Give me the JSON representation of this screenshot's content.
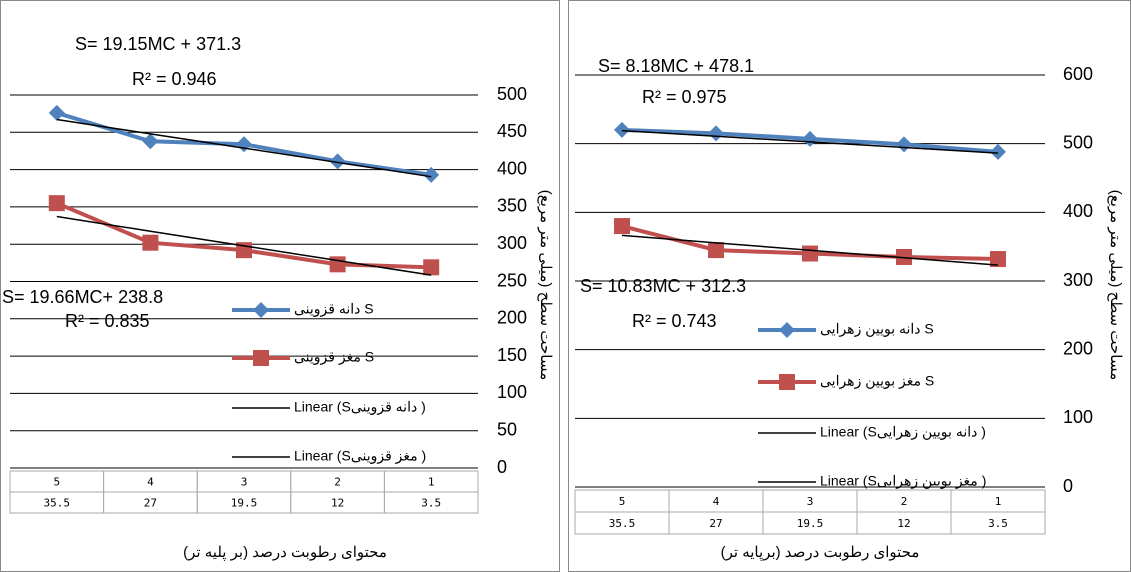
{
  "chart_data": [
    {
      "type": "line",
      "categories": [
        1,
        2,
        3,
        4,
        5
      ],
      "moisture": [
        3.5,
        12,
        19.5,
        27,
        35.5
      ],
      "x_label": "محتوای رطوبت درصد (بر پلیه تر)",
      "y_label": "مساحت سطح (میلی متر مربع)",
      "ylim": [
        0,
        500
      ],
      "yticks": [
        0,
        50,
        100,
        150,
        200,
        250,
        300,
        350,
        400,
        450,
        500
      ],
      "grid": true,
      "annotations": [
        "S= 19.15MC + 371.3",
        "R² = 0.946",
        "S= 19.66MC+ 238.8",
        "R² = 0.835"
      ],
      "series": [
        {
          "name": "دانه قزوینی S",
          "color": "#4f81bd",
          "marker": "diamond",
          "values": [
            393,
            411,
            434,
            438,
            476
          ]
        },
        {
          "name": "مغز قزوینی S",
          "color": "#c0504d",
          "marker": "square",
          "values": [
            269,
            273,
            292,
            302,
            355
          ]
        },
        {
          "name": "Linear (Sدانه قزوینی )",
          "color": "#000000",
          "marker": "none",
          "values": [
            390.5,
            409.6,
            428.8,
            447.9,
            467.1
          ]
        },
        {
          "name": "Linear (Sمغز قزوینی )",
          "color": "#000000",
          "marker": "none",
          "values": [
            258.5,
            278.1,
            297.8,
            317.4,
            337.1
          ]
        }
      ]
    },
    {
      "type": "line",
      "categories": [
        1,
        2,
        3,
        4,
        5
      ],
      "moisture": [
        3.5,
        12,
        19.5,
        27,
        35.5
      ],
      "x_label": "محتوای رطوبت درصد (برپایه تر)",
      "y_label": "مساحت سطح (میلی متر مربع)",
      "ylim": [
        0,
        600
      ],
      "yticks": [
        0,
        100,
        200,
        300,
        400,
        500,
        600
      ],
      "grid": true,
      "annotations": [
        "S= 8.18MC + 478.1",
        "R² = 0.975",
        "S= 10.83MC + 312.3",
        "R² = 0.743"
      ],
      "series": [
        {
          "name": "دانه بویین زهرایی S",
          "color": "#4f81bd",
          "marker": "diamond",
          "values": [
            488,
            499,
            507,
            515,
            520
          ]
        },
        {
          "name": "مغز بویین زهرایی S",
          "color": "#c0504d",
          "marker": "square",
          "values": [
            332,
            335,
            340,
            345,
            380
          ]
        },
        {
          "name": "Linear (Sدانه بویین زهرایی )",
          "color": "#000000",
          "marker": "none",
          "values": [
            486.3,
            494.5,
            502.6,
            510.8,
            519.0
          ]
        },
        {
          "name": "Linear (Sمغز بویین زهرایی )",
          "color": "#000000",
          "marker": "none",
          "values": [
            323.1,
            333.9,
            344.8,
            355.6,
            366.5
          ]
        }
      ]
    }
  ]
}
